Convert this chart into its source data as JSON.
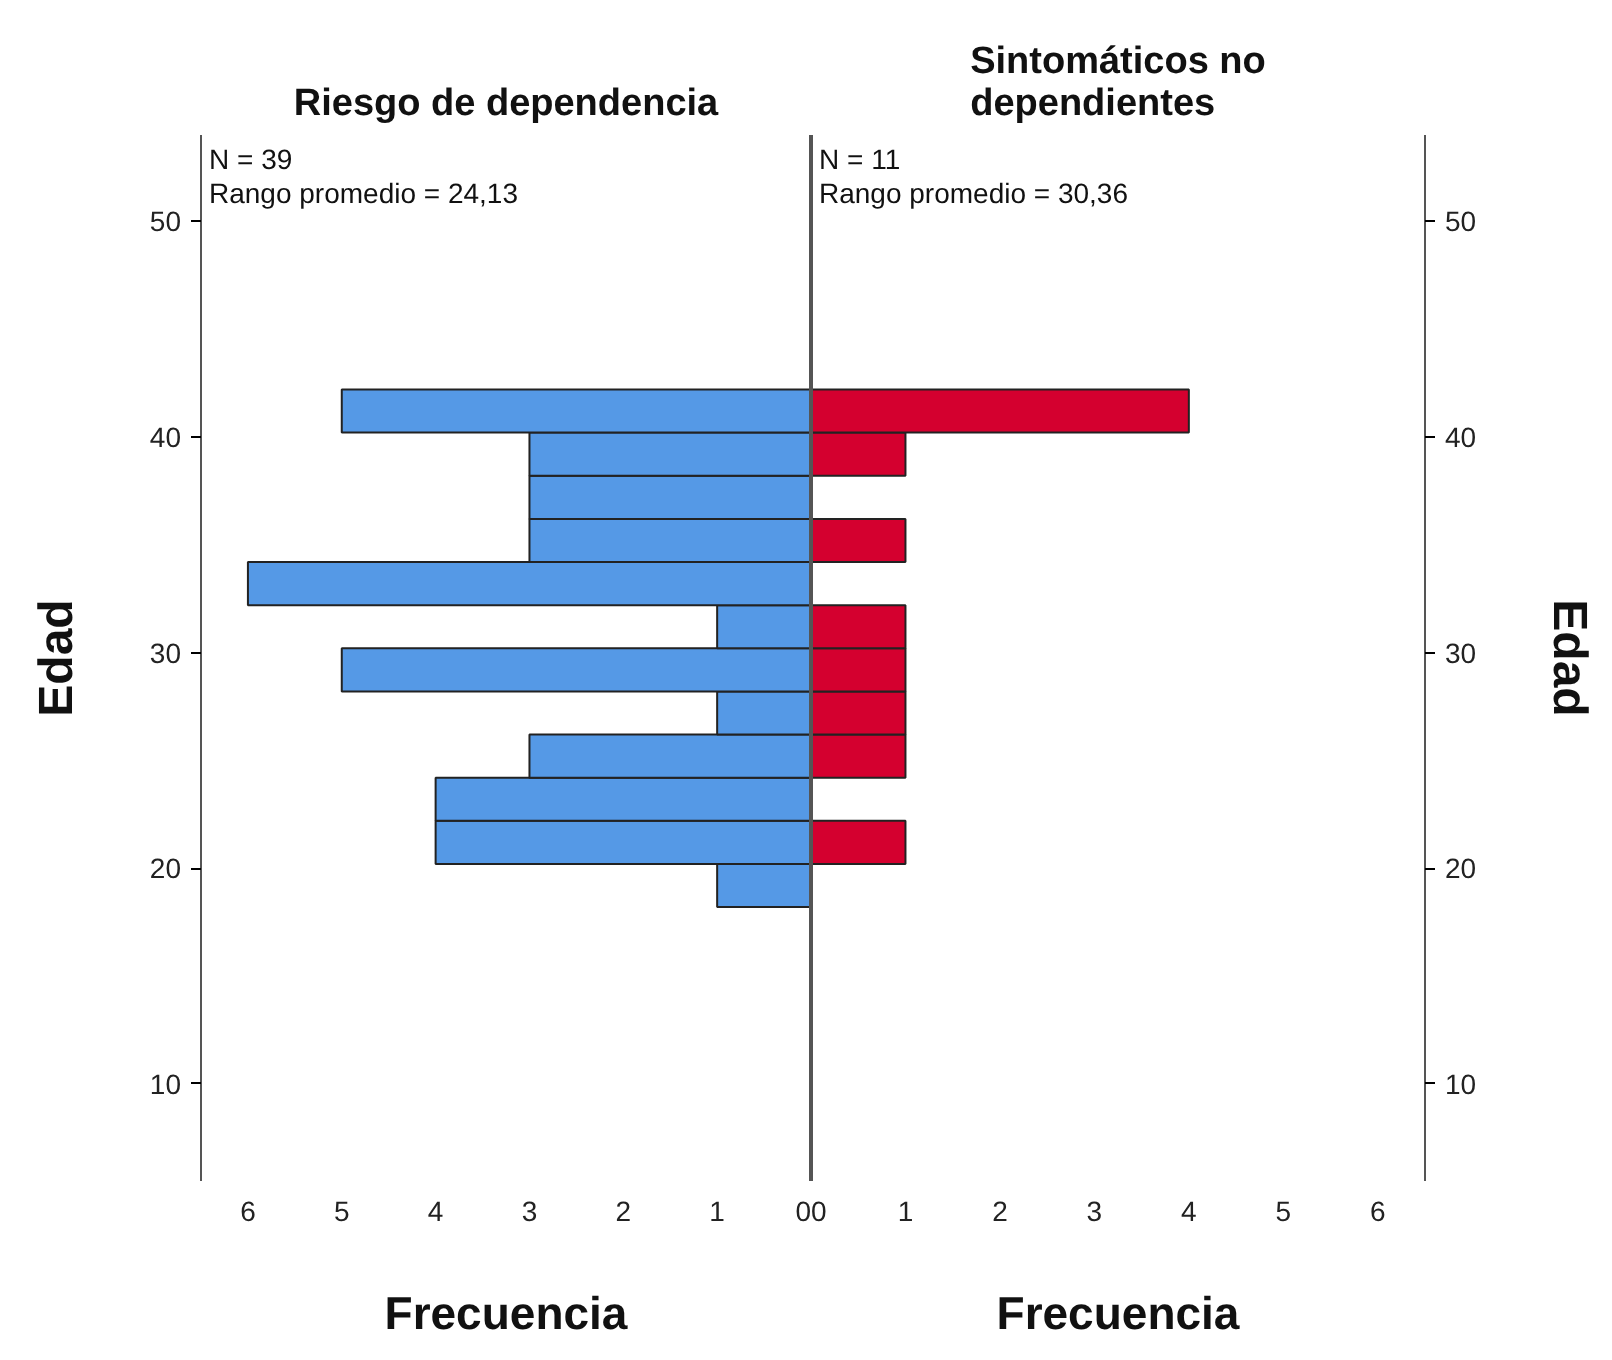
{
  "chart_data": [
    {
      "type": "histogram",
      "orientation": "horizontal",
      "title": "Riesgo de dependencia",
      "xlabel": "Frecuencia",
      "ylabel": "Edad",
      "color": "#5599e6",
      "bins": [
        18.2,
        20.2,
        22.2,
        24.2,
        26.2,
        28.2,
        30.2,
        32.2,
        34.2,
        36.2,
        38.2,
        40.2,
        42.2
      ],
      "values": [
        1,
        4,
        4,
        3,
        1,
        5,
        1,
        6,
        3,
        3,
        3,
        5
      ],
      "xlim": [
        6.5,
        0
      ],
      "xticks": [
        6,
        5,
        4,
        3,
        2,
        1,
        0
      ],
      "ylim": [
        5.5,
        54
      ],
      "yticks": [
        10,
        20,
        30,
        40,
        50
      ],
      "annotations": [
        "N = 39",
        "Rango promedio = 24,13"
      ]
    },
    {
      "type": "histogram",
      "orientation": "horizontal",
      "title": "Sintomáticos no dependientes",
      "xlabel": "Frecuencia",
      "ylabel": "Edad",
      "color": "#d4002f",
      "bins": [
        18.2,
        20.2,
        22.2,
        24.2,
        26.2,
        28.2,
        30.2,
        32.2,
        34.2,
        36.2,
        38.2,
        40.2,
        42.2
      ],
      "values": [
        0,
        1,
        0,
        1,
        1,
        1,
        1,
        0,
        1,
        0,
        1,
        4
      ],
      "xlim": [
        0,
        6.5
      ],
      "xticks": [
        0,
        1,
        2,
        3,
        4,
        5,
        6
      ],
      "ylim": [
        5.5,
        54
      ],
      "yticks": [
        10,
        20,
        30,
        40,
        50
      ],
      "annotations": [
        "N = 11",
        "Rango promedio = 30,36"
      ]
    }
  ]
}
